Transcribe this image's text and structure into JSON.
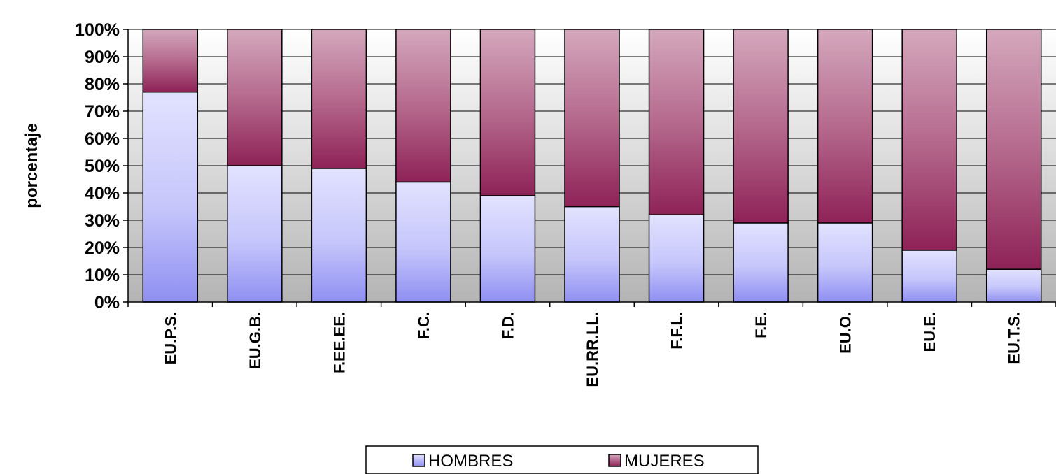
{
  "chart_data": {
    "type": "bar",
    "stacked": true,
    "percent_stacked": true,
    "ylabel": "porcentaje",
    "ylim": [
      0,
      100
    ],
    "y_ticks": [
      "0%",
      "10%",
      "20%",
      "30%",
      "40%",
      "50%",
      "60%",
      "70%",
      "80%",
      "90%",
      "100%"
    ],
    "categories": [
      "EU.P.S.",
      "EU.G.B.",
      "F.EE.EE.",
      "F.C.",
      "F.D.",
      "EU.RR.LL.",
      "F.F.L.",
      "F.E.",
      "EU.O.",
      "EU.E.",
      "EU.T.S."
    ],
    "series": [
      {
        "name": "HOMBRES",
        "values": [
          77,
          50,
          49,
          44,
          39,
          35,
          32,
          29,
          29,
          19,
          12
        ],
        "color": "#b8b8f8"
      },
      {
        "name": "MUJERES",
        "values": [
          23,
          50,
          51,
          56,
          61,
          65,
          68,
          71,
          71,
          81,
          88
        ],
        "color": "#a0426e"
      }
    ],
    "grid": true,
    "legend_position": "bottom"
  }
}
